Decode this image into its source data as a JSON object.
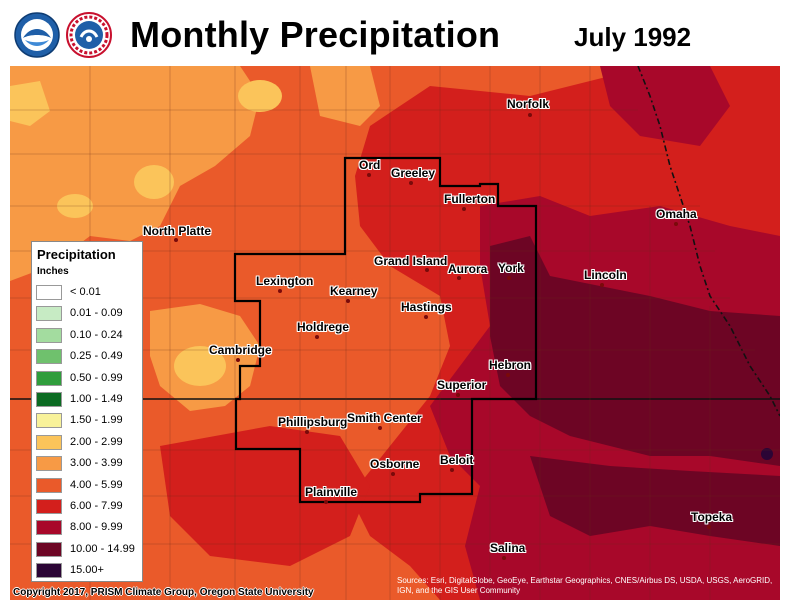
{
  "header": {
    "title": "Monthly Precipitation",
    "period": "July 1992",
    "logos": [
      "noaa-logo",
      "nws-logo"
    ]
  },
  "legend": {
    "title": "Precipitation",
    "units": "Inches",
    "classes": [
      {
        "label": "< 0.01",
        "color": "#ffffff"
      },
      {
        "label": "0.01 - 0.09",
        "color": "#c7ebc4"
      },
      {
        "label": "0.10 - 0.24",
        "color": "#a3dc9f"
      },
      {
        "label": "0.25 - 0.49",
        "color": "#6fc16d"
      },
      {
        "label": "0.50 - 0.99",
        "color": "#2f9d3c"
      },
      {
        "label": "1.00 - 1.49",
        "color": "#0b6b22"
      },
      {
        "label": "1.50 - 1.99",
        "color": "#f8f29a"
      },
      {
        "label": "2.00 - 2.99",
        "color": "#fbc45a"
      },
      {
        "label": "3.00 - 3.99",
        "color": "#f79a45"
      },
      {
        "label": "4.00 - 5.99",
        "color": "#ea5a2a"
      },
      {
        "label": "6.00 - 7.99",
        "color": "#d31f1c"
      },
      {
        "label": "8.00 - 9.99",
        "color": "#a8082a"
      },
      {
        "label": "10.00 - 14.99",
        "color": "#6d0524"
      },
      {
        "label": "15.00+",
        "color": "#2b0535"
      }
    ]
  },
  "cities": [
    {
      "id": "norfolk",
      "label": "Norfolk"
    },
    {
      "id": "ord",
      "label": "Ord"
    },
    {
      "id": "greeley",
      "label": "Greeley"
    },
    {
      "id": "fullerton",
      "label": "Fullerton"
    },
    {
      "id": "omaha",
      "label": "Omaha"
    },
    {
      "id": "north-platte",
      "label": "North Platte"
    },
    {
      "id": "grand-island",
      "label": "Grand Island"
    },
    {
      "id": "aurora",
      "label": "Aurora"
    },
    {
      "id": "york",
      "label": "York"
    },
    {
      "id": "lincoln",
      "label": "Lincoln"
    },
    {
      "id": "lexington",
      "label": "Lexington"
    },
    {
      "id": "kearney",
      "label": "Kearney"
    },
    {
      "id": "hastings",
      "label": "Hastings"
    },
    {
      "id": "holdrege",
      "label": "Holdrege"
    },
    {
      "id": "cambridge",
      "label": "Cambridge"
    },
    {
      "id": "hebron",
      "label": "Hebron"
    },
    {
      "id": "superior",
      "label": "Superior"
    },
    {
      "id": "phillipsburg",
      "label": "Phillipsburg"
    },
    {
      "id": "smith-center",
      "label": "Smith Center"
    },
    {
      "id": "osborne",
      "label": "Osborne"
    },
    {
      "id": "beloit",
      "label": "Beloit"
    },
    {
      "id": "plainville",
      "label": "Plainville"
    },
    {
      "id": "topeka",
      "label": "Topeka"
    },
    {
      "id": "salina",
      "label": "Salina"
    }
  ],
  "footer": {
    "copyright": "Copyright 2017, PRISM Climate Group, Oregon State University",
    "sources": "Sources: Esri, DigitalGlobe, GeoEye, Earthstar Geographics, CNES/Airbus DS, USDA, USGS, AeroGRID, IGN, and the GIS User Community"
  }
}
